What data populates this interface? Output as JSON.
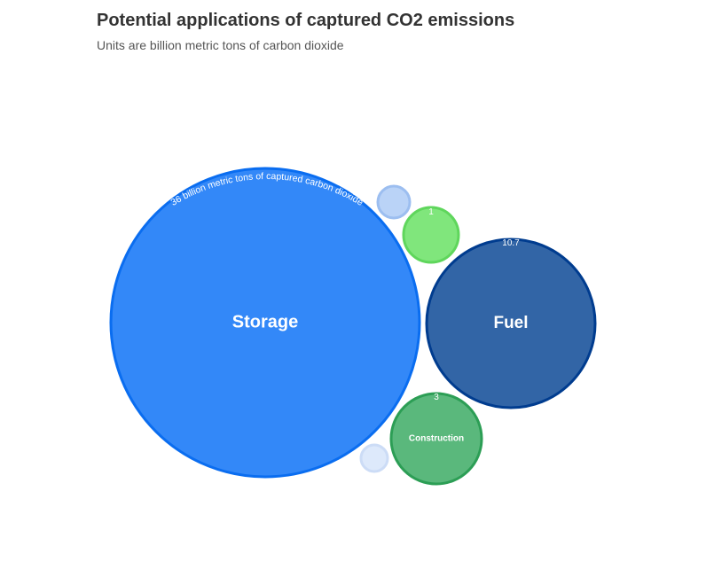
{
  "chart_data": {
    "type": "bubble",
    "title": "Potential applications of captured CO2 emissions",
    "subtitle": "Units are billion metric tons of carbon dioxide",
    "series": [
      {
        "name": "Storage",
        "value": 36,
        "value_label": "36 billion metric tons of captured carbon dioxide",
        "color": "#3388f8",
        "stroke": "#0a6df0"
      },
      {
        "name": "Fuel",
        "value": 10.7,
        "value_label": "10.7",
        "color": "#3265a6",
        "stroke": "#003c8f"
      },
      {
        "name": "Construction",
        "value": 3,
        "value_label": "3",
        "color": "#5ab87c",
        "stroke": "#2c9e55"
      },
      {
        "name": "",
        "value": 1,
        "value_label": "1",
        "color": "#80e67c",
        "stroke": "#5fd65c"
      },
      {
        "name": "",
        "value": 0.5,
        "value_label": "",
        "color": "#bad3f7",
        "stroke": "#9cbef0"
      },
      {
        "name": "",
        "value": 0.3,
        "value_label": "",
        "color": "#dde9fb",
        "stroke": "#ccdcf6"
      }
    ]
  }
}
